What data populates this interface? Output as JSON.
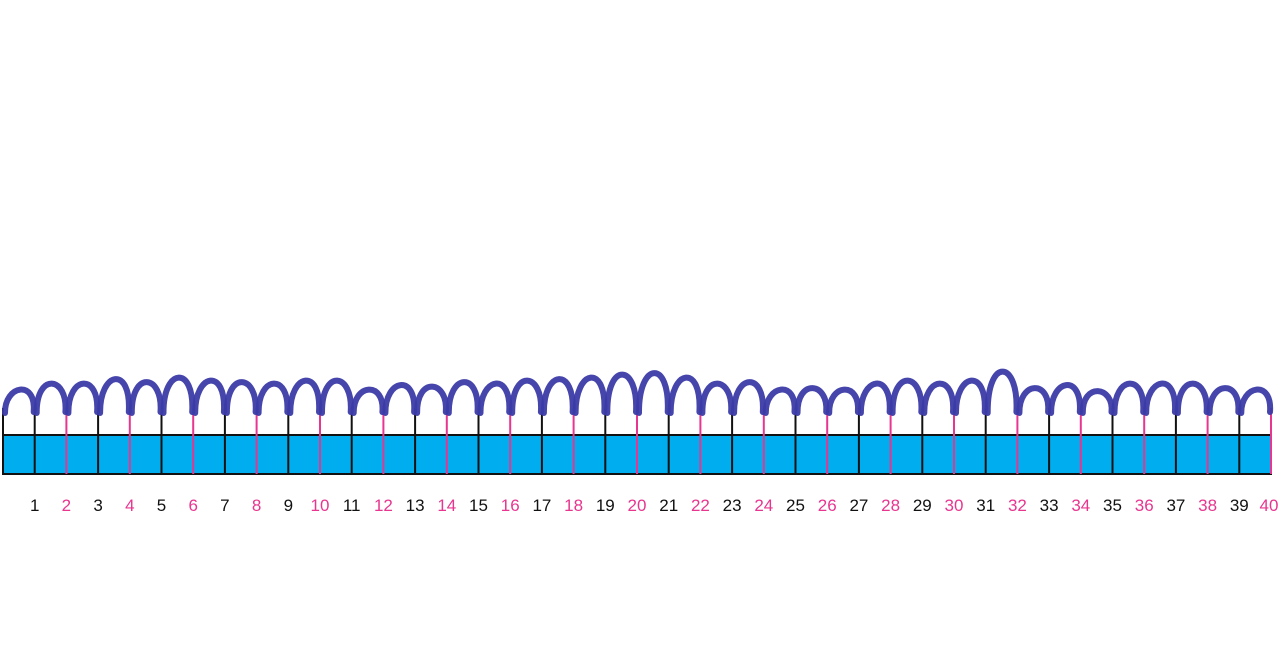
{
  "colors": {
    "strip_fill": "#00adef",
    "strip_stroke": "#111111",
    "tick_odd": "#111111",
    "tick_even": "#e8358f",
    "label_odd": "#111111",
    "label_even": "#e8358f",
    "jump_arcs": "#3b3ba6"
  },
  "number_line": {
    "start": 0,
    "end": 40,
    "step": 1,
    "even_highlighted": true
  },
  "labels": [
    "1",
    "2",
    "3",
    "4",
    "5",
    "6",
    "7",
    "8",
    "9",
    "10",
    "11",
    "12",
    "13",
    "14",
    "15",
    "16",
    "17",
    "18",
    "19",
    "20",
    "21",
    "22",
    "23",
    "24",
    "25",
    "26",
    "27",
    "28",
    "29",
    "30",
    "31",
    "32",
    "33",
    "34",
    "35",
    "36",
    "37",
    "38",
    "39",
    "40"
  ],
  "jumps": {
    "count": 40,
    "from": 0,
    "to": 40,
    "jump_size": 1
  }
}
